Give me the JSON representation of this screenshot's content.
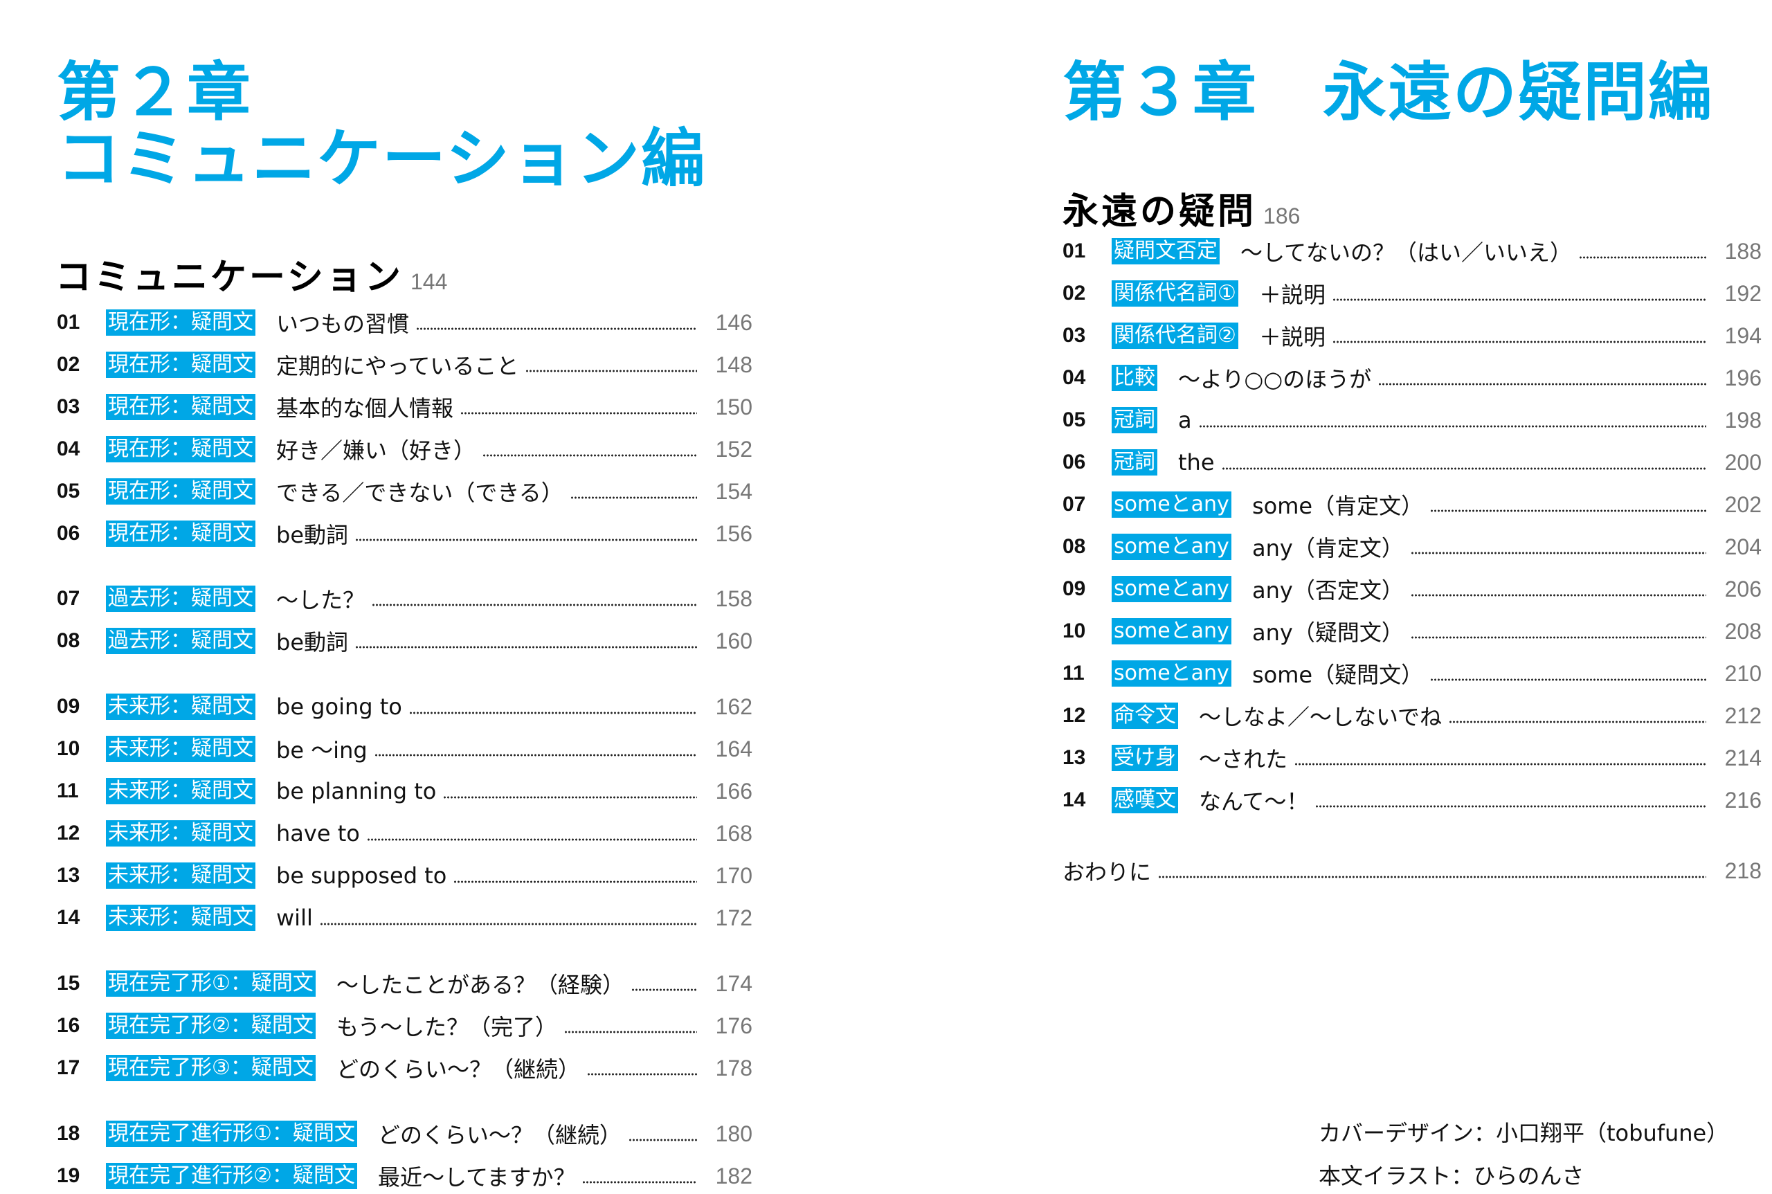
{
  "left_page": {
    "chapter_title_line1": "第２章",
    "chapter_title_line2": "コミュニケーション編",
    "section": {
      "name": "コミュニケーション",
      "page": "144"
    },
    "entries": [
      {
        "num": "01",
        "badge": "現在形：疑問文",
        "title": "いつもの習慣",
        "page": "146"
      },
      {
        "num": "02",
        "badge": "現在形：疑問文",
        "title": "定期的にやっていること",
        "page": "148"
      },
      {
        "num": "03",
        "badge": "現在形：疑問文",
        "title": "基本的な個人情報",
        "page": "150"
      },
      {
        "num": "04",
        "badge": "現在形：疑問文",
        "title": "好き／嫌い（好き）",
        "page": "152"
      },
      {
        "num": "05",
        "badge": "現在形：疑問文",
        "title": "できる／できない（できる）",
        "page": "154"
      },
      {
        "num": "06",
        "badge": "現在形：疑問文",
        "title": "be動詞",
        "page": "156"
      },
      {
        "num": "07",
        "badge": "過去形：疑問文",
        "title": "～した？",
        "page": "158"
      },
      {
        "num": "08",
        "badge": "過去形：疑問文",
        "title": "be動詞",
        "page": "160"
      },
      {
        "num": "09",
        "badge": "未来形：疑問文",
        "title": "be going to",
        "page": "162"
      },
      {
        "num": "10",
        "badge": "未来形：疑問文",
        "title": "be ～ing",
        "page": "164"
      },
      {
        "num": "11",
        "badge": "未来形：疑問文",
        "title": "be planning to",
        "page": "166"
      },
      {
        "num": "12",
        "badge": "未来形：疑問文",
        "title": "have to",
        "page": "168"
      },
      {
        "num": "13",
        "badge": "未来形：疑問文",
        "title": "be supposed to",
        "page": "170"
      },
      {
        "num": "14",
        "badge": "未来形：疑問文",
        "title": "will",
        "page": "172"
      },
      {
        "num": "15",
        "badge": "現在完了形①：疑問文",
        "title": "～したことがある？（経験）",
        "page": "174"
      },
      {
        "num": "16",
        "badge": "現在完了形②：疑問文",
        "title": "もう～した？（完了）",
        "page": "176"
      },
      {
        "num": "17",
        "badge": "現在完了形③：疑問文",
        "title": "どのくらい～？（継続）",
        "page": "178"
      },
      {
        "num": "18",
        "badge": "現在完了進行形①：疑問文",
        "title": "どのくらい～？（継続）",
        "page": "180"
      },
      {
        "num": "19",
        "badge": "現在完了進行形②：疑問文",
        "title": "最近～してますか？",
        "page": "182"
      }
    ]
  },
  "right_page": {
    "chapter_title": "第３章　永遠の疑問編",
    "section": {
      "name": "永遠の疑問",
      "page": "186"
    },
    "entries": [
      {
        "num": "01",
        "badge": "疑問文否定",
        "title": "～してないの？（はい／いいえ）",
        "page": "188"
      },
      {
        "num": "02",
        "badge": "関係代名詞①",
        "title": "＋説明",
        "page": "192"
      },
      {
        "num": "03",
        "badge": "関係代名詞②",
        "title": "＋説明",
        "page": "194"
      },
      {
        "num": "04",
        "badge": "比較",
        "title": "～より○○のほうが",
        "page": "196"
      },
      {
        "num": "05",
        "badge": "冠詞",
        "title": "a",
        "page": "198"
      },
      {
        "num": "06",
        "badge": "冠詞",
        "title": "the",
        "page": "200"
      },
      {
        "num": "07",
        "badge": "someとany",
        "title": "some（肯定文）",
        "page": "202"
      },
      {
        "num": "08",
        "badge": "someとany",
        "title": "any（肯定文）",
        "page": "204"
      },
      {
        "num": "09",
        "badge": "someとany",
        "title": "any（否定文）",
        "page": "206"
      },
      {
        "num": "10",
        "badge": "someとany",
        "title": "any（疑問文）",
        "page": "208"
      },
      {
        "num": "11",
        "badge": "someとany",
        "title": "some（疑問文）",
        "page": "210"
      },
      {
        "num": "12",
        "badge": "命令文",
        "title": "～しなよ／～しないでね",
        "page": "212"
      },
      {
        "num": "13",
        "badge": "受け身",
        "title": "～された",
        "page": "214"
      },
      {
        "num": "14",
        "badge": "感嘆文",
        "title": "なんて～！",
        "page": "216"
      }
    ],
    "afterword": {
      "title": "おわりに",
      "page": "218"
    },
    "credits": {
      "cover_design": "カバーデザイン：小口翔平（tobufune）",
      "illustration": "本文イラスト：ひらのんさ"
    }
  },
  "colors": {
    "accent": "#00a7e6",
    "text": "#1a1a1a",
    "page_number": "#777777"
  }
}
